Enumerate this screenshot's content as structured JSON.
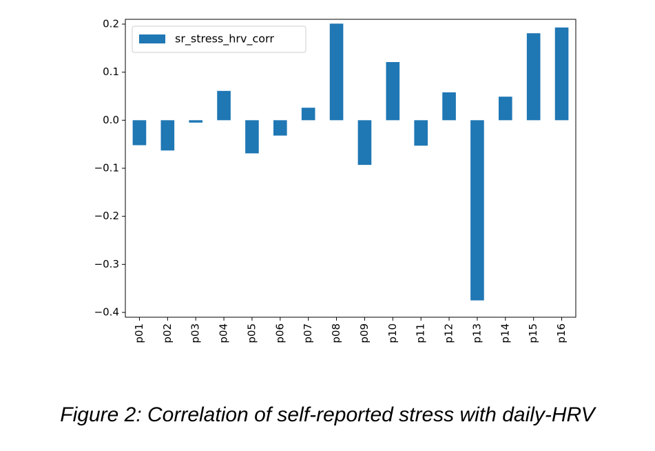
{
  "chart_data": {
    "type": "bar",
    "categories": [
      "p01",
      "p02",
      "p03",
      "p04",
      "p05",
      "p06",
      "p07",
      "p08",
      "p09",
      "p10",
      "p11",
      "p12",
      "p13",
      "p14",
      "p15",
      "p16"
    ],
    "series": [
      {
        "name": "sr_stress_hrv_corr",
        "color": "#1f77b4",
        "values": [
          -0.052,
          -0.063,
          -0.005,
          0.061,
          -0.069,
          -0.032,
          0.026,
          0.201,
          -0.093,
          0.121,
          -0.053,
          0.058,
          -0.375,
          0.049,
          0.181,
          0.193
        ]
      }
    ],
    "ylim": [
      -0.41,
      0.21
    ],
    "yticks": [
      0.2,
      0.1,
      0.0,
      -0.1,
      -0.2,
      -0.3,
      -0.4
    ],
    "ytick_labels": [
      "0.2",
      "0.1",
      "0.0",
      "−0.1",
      "−0.2",
      "−0.3",
      "−0.4"
    ],
    "legend_position": "top-left",
    "grid": false
  },
  "caption": "Figure 2: Correlation of self-reported stress with daily-HRV"
}
